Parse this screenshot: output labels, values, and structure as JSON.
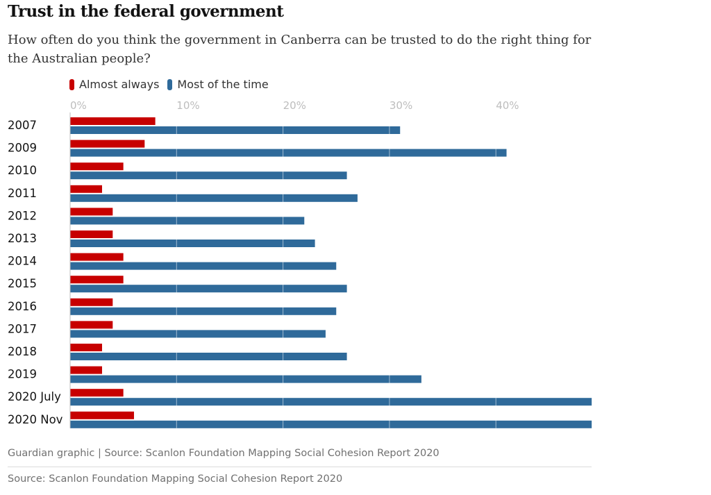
{
  "header": {
    "title": "Trust in the federal government",
    "subtitle": "How often do you think the government in Canberra can be trusted to do the right thing for the Australian people?"
  },
  "footer": {
    "credit": "Guardian graphic | Source: Scanlon Foundation Mapping Social Cohesion Report 2020",
    "source": "Source: Scanlon Foundation Mapping Social Cohesion Report 2020"
  },
  "chart_data": {
    "type": "bar",
    "orientation": "horizontal",
    "title": "Trust in the federal government",
    "subtitle": "How often do you think the government in Canberra can be trusted to do the right thing for the Australian people?",
    "categories": [
      "2007",
      "2009",
      "2010",
      "2011",
      "2012",
      "2013",
      "2014",
      "2015",
      "2016",
      "2017",
      "2018",
      "2019",
      "2020 July",
      "2020 Nov"
    ],
    "series": [
      {
        "name": "Almost always",
        "color": "#c70000",
        "values": [
          8,
          7,
          5,
          3,
          4,
          4,
          5,
          5,
          4,
          4,
          3,
          3,
          5,
          6
        ]
      },
      {
        "name": "Most of the time",
        "color": "#2f6a9a",
        "values": [
          31,
          41,
          26,
          27,
          22,
          23,
          25,
          26,
          25,
          24,
          26,
          33,
          49,
          49
        ]
      }
    ],
    "ticks": [
      {
        "value": 0,
        "label": "0%"
      },
      {
        "value": 10,
        "label": "10%"
      },
      {
        "value": 20,
        "label": "20%"
      },
      {
        "value": 30,
        "label": "30%"
      },
      {
        "value": 40,
        "label": "40%"
      }
    ],
    "xlim": [
      0,
      49
    ],
    "grid": true,
    "legend_position": "top-left"
  }
}
